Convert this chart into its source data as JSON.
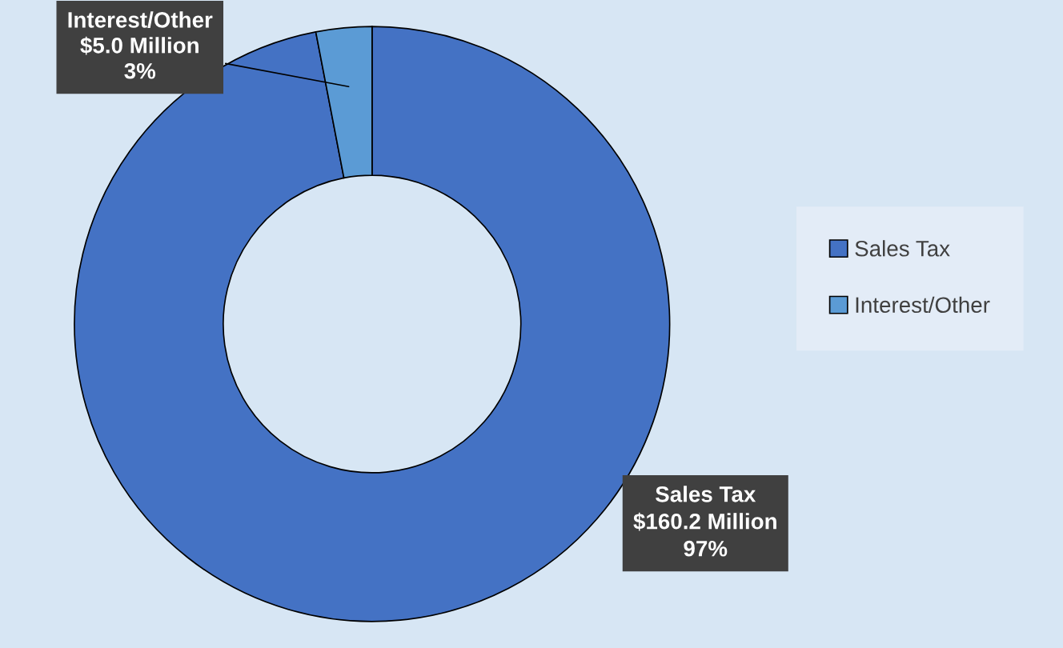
{
  "chart_data": {
    "type": "donut",
    "categories": [
      "Sales Tax",
      "Interest/Other"
    ],
    "values": [
      160.2,
      5.0
    ],
    "colors": [
      "#4472c4",
      "#5b9bd5"
    ],
    "value_labels": [
      "Sales Tax\n$160.2 Million\n97%",
      "Interest/Other\n$5.0 Million\n3%"
    ],
    "legend": "right"
  }
}
